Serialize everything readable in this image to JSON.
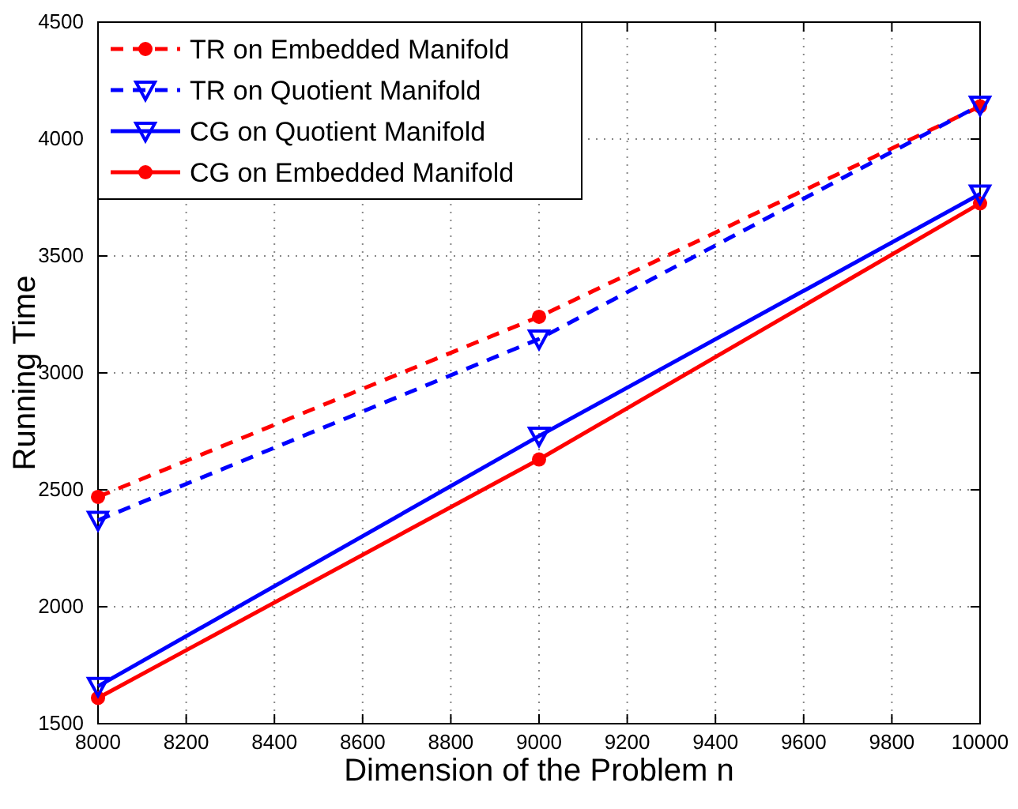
{
  "chart_data": {
    "type": "line",
    "xlabel": "Dimension of the Problem n",
    "ylabel": "Running Time",
    "x": [
      8000,
      9000,
      10000
    ],
    "xlim": [
      8000,
      10000
    ],
    "xticks": [
      8000,
      8200,
      8400,
      8600,
      8800,
      9000,
      9200,
      9400,
      9600,
      9800,
      10000
    ],
    "ylim": [
      1500,
      4500
    ],
    "yticks": [
      1500,
      2000,
      2500,
      3000,
      3500,
      4000,
      4500
    ],
    "grid": true,
    "legend": "top left",
    "series": [
      {
        "name": "TR on Embedded Manifold",
        "color": "#ff0000",
        "values": [
          2470,
          3240,
          4140
        ],
        "line_style": "dashed",
        "marker": "circle"
      },
      {
        "name": "TR on Quotient Manifold",
        "color": "#0000ff",
        "values": [
          2370,
          3145,
          4145
        ],
        "line_style": "dashed",
        "marker": "triangle"
      },
      {
        "name": "CG on Quotient Manifold",
        "color": "#0000ff",
        "values": [
          1660,
          2730,
          3765
        ],
        "line_style": "solid",
        "marker": "triangle"
      },
      {
        "name": "CG on Embedded Manifold",
        "color": "#ff0000",
        "values": [
          1610,
          2630,
          3725
        ],
        "line_style": "solid",
        "marker": "circle"
      }
    ]
  }
}
